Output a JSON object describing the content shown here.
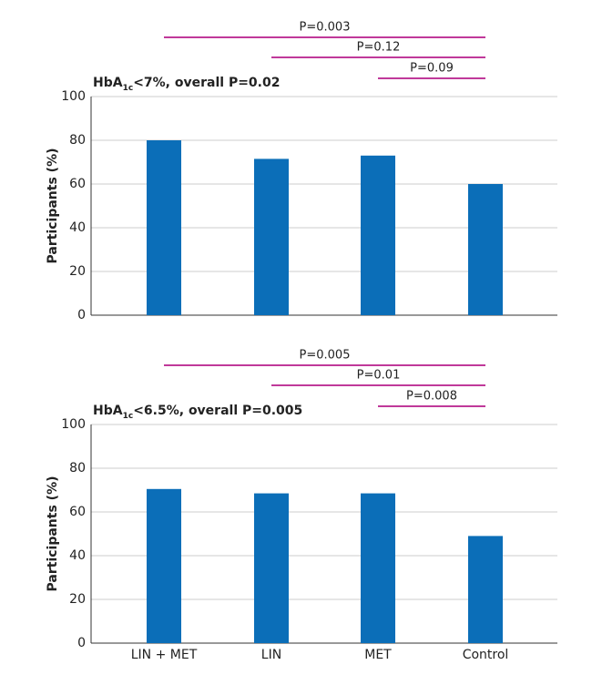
{
  "chart_data": [
    {
      "type": "bar",
      "title": [
        "HbA",
        "1c",
        "<7%, overall P=0.02"
      ],
      "y_label": "Participants (%)",
      "categories": [
        null,
        null,
        null,
        null
      ],
      "values": [
        80,
        71.5,
        73,
        60
      ],
      "color": "#0b6eb8",
      "ylim": [
        0,
        100
      ],
      "yticks": [
        0,
        20,
        40,
        60,
        80,
        100
      ],
      "grid": true,
      "comparisons": [
        {
          "start": 0,
          "end": 3,
          "label": "P=0.003"
        },
        {
          "start": 1,
          "end": 3,
          "label": "P=0.12"
        },
        {
          "start": 2,
          "end": 3,
          "label": "P=0.09"
        }
      ],
      "comparison_color": "#c0399a"
    },
    {
      "type": "bar",
      "title": [
        "HbA",
        "1c",
        "<6.5%, overall P=0.005"
      ],
      "y_label": "Participants (%)",
      "categories": [
        "LIN + MET",
        "LIN",
        "MET",
        "Control"
      ],
      "values": [
        70.5,
        68.5,
        68.5,
        49
      ],
      "color": "#0b6eb8",
      "ylim": [
        0,
        100
      ],
      "yticks": [
        0,
        20,
        40,
        60,
        80,
        100
      ],
      "grid": true,
      "comparisons": [
        {
          "start": 0,
          "end": 3,
          "label": "P=0.005"
        },
        {
          "start": 1,
          "end": 3,
          "label": "P=0.01"
        },
        {
          "start": 2,
          "end": 3,
          "label": "P=0.008"
        }
      ],
      "comparison_color": "#c0399a"
    }
  ]
}
